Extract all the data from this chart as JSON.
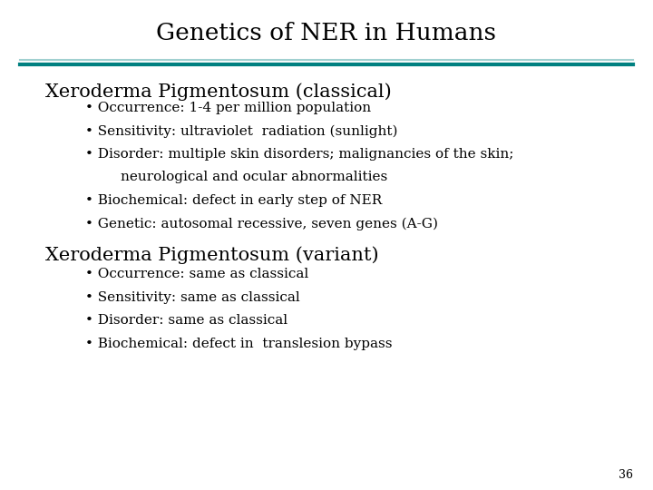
{
  "title": "Genetics of NER in Humans",
  "title_fontsize": 19,
  "title_color": "#000000",
  "line_color_thin": "#a0d0d0",
  "line_color_thick": "#008080",
  "background_color": "#ffffff",
  "page_number": "36",
  "section1_heading": "Xeroderma Pigmentosum (classical)",
  "section1_bullets": [
    "• Occurrence: 1-4 per million population",
    "• Sensitivity: ultraviolet  radiation (sunlight)",
    "• Disorder: multiple skin disorders; malignancies of the skin;",
    "        neurological and ocular abnormalities",
    "• Biochemical: defect in early step of NER",
    "• Genetic: autosomal recessive, seven genes (A-G)"
  ],
  "section2_heading": "Xeroderma Pigmentosum (variant)",
  "section2_bullets": [
    "• Occurrence: same as classical",
    "• Sensitivity: same as classical",
    "• Disorder: same as classical",
    "• Biochemical: defect in  translesion bypass"
  ],
  "heading_fontsize": 15,
  "bullet_fontsize": 11,
  "page_num_fontsize": 9
}
